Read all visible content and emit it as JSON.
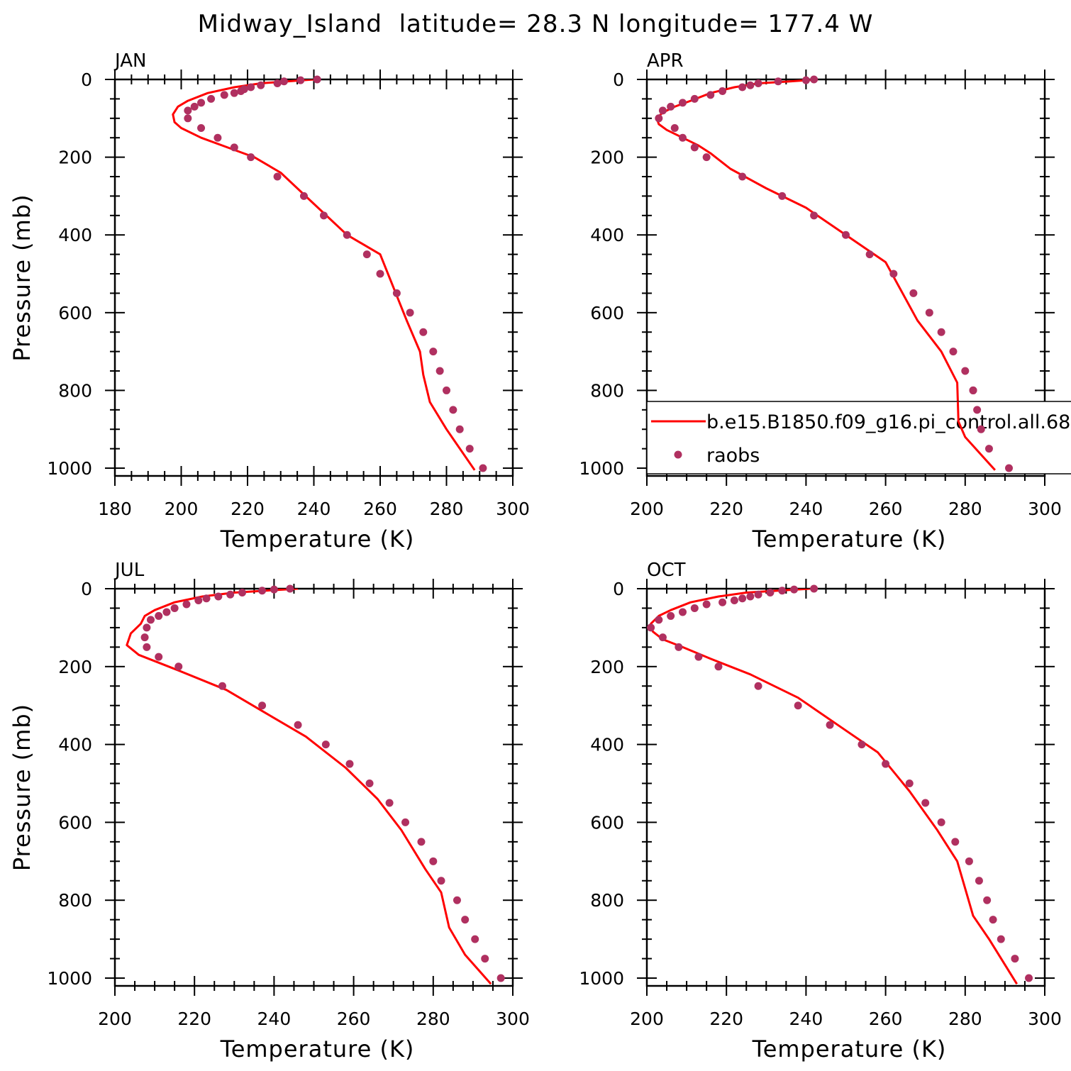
{
  "figure_title": "Midway_Island  latitude= 28.3 N longitude= 177.4 W",
  "colors": {
    "model_line": "#ff0000",
    "obs_points": "#b03060",
    "axes": "#000000"
  },
  "legend": {
    "panel": 1,
    "model_label": "b.e15.B1850.f09_g16.pi_control.all.68",
    "obs_label": "raobs"
  },
  "chart_data": [
    {
      "type": "line",
      "panel_label": "JAN",
      "xlabel": "Temperature (K)",
      "ylabel": "Pressure (mb)",
      "xlim": [
        180,
        300
      ],
      "ylim": [
        0,
        1020
      ],
      "y_inverted": true,
      "xticks": [
        180,
        200,
        220,
        240,
        260,
        280,
        300
      ],
      "yticks": [
        0,
        200,
        400,
        600,
        800,
        1000
      ],
      "series": [
        {
          "kind": "line",
          "x": [
            240,
            232,
            224,
            216,
            208,
            202,
            199,
            197.5,
            198,
            200,
            206,
            214,
            222,
            230,
            240,
            250,
            260,
            268,
            272,
            273,
            275,
            280,
            288.5
          ],
          "y": [
            0,
            5,
            10,
            20,
            35,
            55,
            70,
            90,
            110,
            125,
            150,
            175,
            200,
            240,
            320,
            400,
            450,
            620,
            700,
            760,
            830,
            900,
            1005
          ]
        },
        {
          "kind": "points",
          "x": [
            241,
            236,
            231,
            229,
            224,
            221,
            219,
            218,
            216,
            213,
            209,
            206,
            204,
            202,
            202,
            206,
            211,
            216,
            221,
            229,
            237,
            243,
            250,
            256,
            260,
            265,
            269,
            273,
            276,
            278,
            280,
            282,
            284,
            287,
            291
          ],
          "y": [
            0,
            2,
            5,
            10,
            15,
            20,
            25,
            30,
            35,
            40,
            50,
            60,
            70,
            80,
            100,
            125,
            150,
            175,
            200,
            250,
            300,
            350,
            400,
            450,
            500,
            550,
            600,
            650,
            700,
            750,
            800,
            850,
            900,
            950,
            1000
          ]
        }
      ]
    },
    {
      "type": "line",
      "panel_label": "APR",
      "xlabel": "Temperature (K)",
      "ylabel": "",
      "xlim": [
        200,
        300
      ],
      "ylim": [
        0,
        1020
      ],
      "y_inverted": true,
      "xticks": [
        200,
        220,
        240,
        260,
        280,
        300
      ],
      "yticks": [
        0,
        200,
        400,
        600,
        800,
        1000
      ],
      "series": [
        {
          "kind": "line",
          "x": [
            243,
            236,
            228,
            222,
            216,
            211,
            207,
            204,
            202.5,
            203,
            205,
            209,
            213,
            216,
            221,
            230,
            240,
            250,
            260,
            268,
            274,
            278,
            278.3,
            280,
            287.5
          ],
          "y": [
            0,
            5,
            10,
            20,
            35,
            55,
            70,
            85,
            100,
            115,
            130,
            150,
            170,
            190,
            230,
            280,
            330,
            400,
            470,
            620,
            700,
            780,
            880,
            920,
            1005
          ]
        },
        {
          "kind": "points",
          "x": [
            242,
            240,
            233,
            228,
            226,
            224,
            219,
            216,
            212,
            209,
            206,
            204,
            203,
            207,
            209,
            212,
            215,
            224,
            234,
            242,
            250,
            256,
            262,
            267,
            271,
            274,
            277,
            280,
            282,
            283,
            284,
            286,
            291
          ],
          "y": [
            0,
            2,
            5,
            10,
            15,
            20,
            30,
            40,
            50,
            60,
            70,
            80,
            100,
            125,
            150,
            175,
            200,
            250,
            300,
            350,
            400,
            450,
            500,
            550,
            600,
            650,
            700,
            750,
            800,
            850,
            900,
            950,
            1000
          ]
        }
      ]
    },
    {
      "type": "line",
      "panel_label": "JUL",
      "xlabel": "Temperature (K)",
      "ylabel": "Pressure (mb)",
      "xlim": [
        200,
        300
      ],
      "ylim": [
        0,
        1020
      ],
      "y_inverted": true,
      "xticks": [
        200,
        220,
        240,
        260,
        280,
        300
      ],
      "yticks": [
        0,
        200,
        400,
        600,
        800,
        1000
      ],
      "series": [
        {
          "kind": "line",
          "x": [
            246,
            238,
            230,
            222,
            215,
            210,
            207.5,
            206.5,
            204,
            203,
            206,
            216,
            228,
            238,
            248,
            258,
            266,
            272,
            278,
            282,
            284,
            288,
            294.5
          ],
          "y": [
            0,
            5,
            10,
            20,
            35,
            55,
            70,
            90,
            115,
            145,
            170,
            210,
            260,
            320,
            380,
            460,
            540,
            620,
            720,
            780,
            870,
            940,
            1015
          ]
        },
        {
          "kind": "points",
          "x": [
            244,
            240,
            237,
            232,
            229,
            226,
            223,
            221,
            218,
            215,
            213,
            211,
            209,
            208,
            207.5,
            208,
            211,
            216,
            227,
            237,
            246,
            253,
            259,
            264,
            269,
            273,
            277,
            280,
            282,
            286,
            288,
            290.5,
            293,
            297
          ],
          "y": [
            0,
            2,
            5,
            10,
            15,
            20,
            25,
            30,
            40,
            50,
            60,
            70,
            80,
            100,
            125,
            150,
            175,
            200,
            250,
            300,
            350,
            400,
            450,
            500,
            550,
            600,
            650,
            700,
            750,
            800,
            850,
            900,
            950,
            1000
          ]
        }
      ]
    },
    {
      "type": "line",
      "panel_label": "OCT",
      "xlabel": "Temperature (K)",
      "ylabel": "",
      "xlim": [
        200,
        300
      ],
      "ylim": [
        0,
        1020
      ],
      "y_inverted": true,
      "xticks": [
        200,
        220,
        240,
        260,
        280,
        300
      ],
      "yticks": [
        0,
        200,
        400,
        600,
        800,
        1000
      ],
      "series": [
        {
          "kind": "line",
          "x": [
            241,
            233,
            225,
            218,
            211,
            206,
            203,
            201,
            201.5,
            204,
            209,
            216,
            226,
            238,
            248,
            258,
            266,
            273,
            278,
            280,
            282,
            286,
            293
          ],
          "y": [
            0,
            5,
            10,
            20,
            35,
            55,
            70,
            90,
            110,
            130,
            150,
            180,
            220,
            280,
            350,
            420,
            520,
            620,
            700,
            770,
            840,
            900,
            1015
          ]
        },
        {
          "kind": "points",
          "x": [
            242,
            237,
            234,
            231,
            228,
            226,
            224,
            222,
            219,
            215,
            212,
            209,
            206,
            203,
            201,
            204,
            208,
            213,
            218,
            228,
            238,
            246,
            254,
            260,
            266,
            270,
            274,
            277.5,
            281,
            283.5,
            285.5,
            287,
            289,
            292.5,
            296
          ],
          "y": [
            0,
            2,
            5,
            10,
            15,
            20,
            25,
            30,
            35,
            40,
            50,
            60,
            70,
            80,
            100,
            125,
            150,
            175,
            200,
            250,
            300,
            350,
            400,
            450,
            500,
            550,
            600,
            650,
            700,
            750,
            800,
            850,
            900,
            950,
            1000
          ]
        }
      ]
    }
  ]
}
